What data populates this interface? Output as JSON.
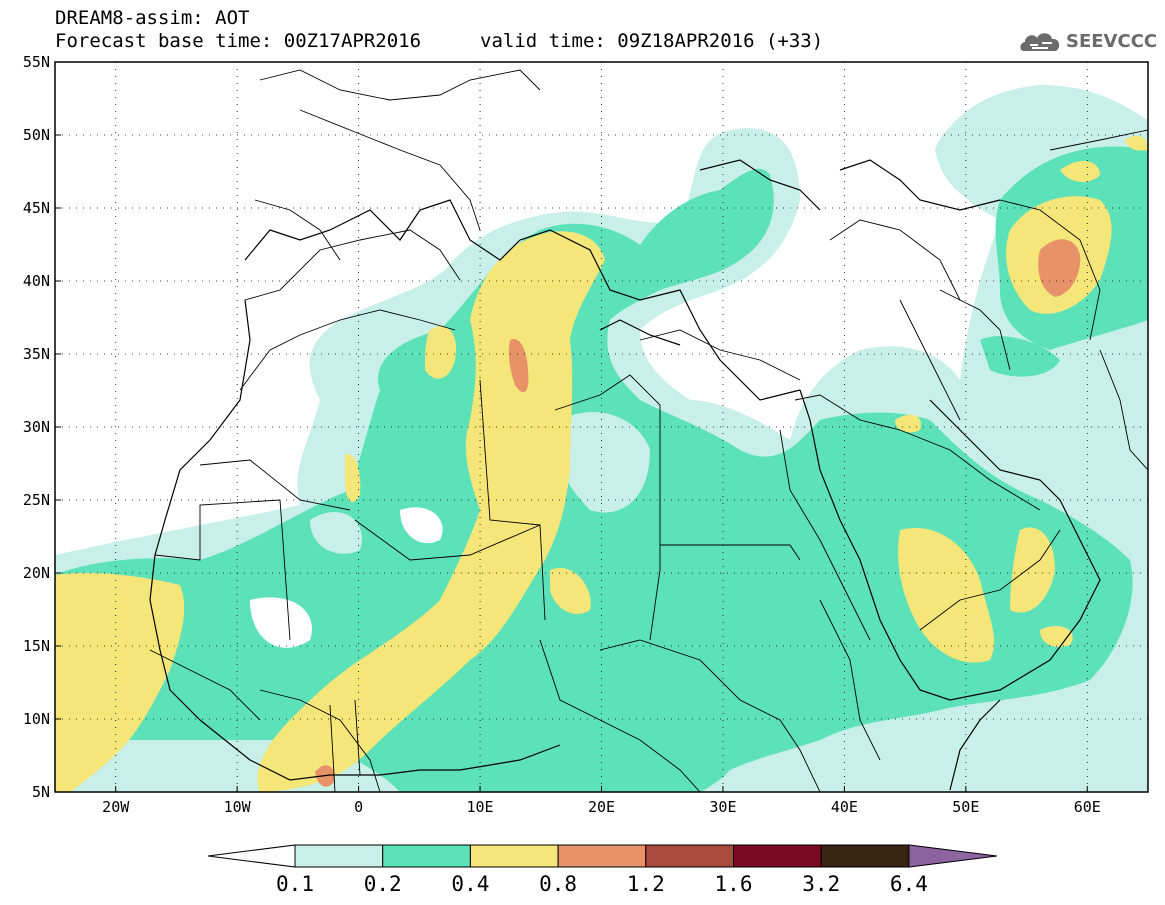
{
  "header": {
    "title": "DREAM8-assim: AOT",
    "base_time": "Forecast base time: 00Z17APR2016",
    "valid_time": "valid time: 09Z18APR2016 (+33)",
    "logo_text": "SEEVCCC",
    "logo_icon": "cloud-icon"
  },
  "map": {
    "variable": "AOT",
    "lon_range": [
      -25,
      65
    ],
    "lat_range": [
      5,
      55
    ],
    "lon_ticks": [
      "20W",
      "10W",
      "0",
      "10E",
      "20E",
      "30E",
      "40E",
      "50E",
      "60E"
    ],
    "lat_ticks": [
      "55N",
      "50N",
      "45N",
      "40N",
      "35N",
      "30N",
      "25N",
      "20N",
      "15N",
      "10N",
      "5N"
    ],
    "background_color": "#ffffff"
  },
  "colorbar": {
    "labels": [
      "0.1",
      "0.2",
      "0.4",
      "0.8",
      "1.2",
      "1.6",
      "3.2",
      "6.4"
    ],
    "colors": [
      "#ffffff",
      "#c8f0e8",
      "#5ce1b8",
      "#f5e67a",
      "#e8926a",
      "#a84a3c",
      "#7a0a20",
      "#3a2412",
      "#8c64a0"
    ]
  }
}
